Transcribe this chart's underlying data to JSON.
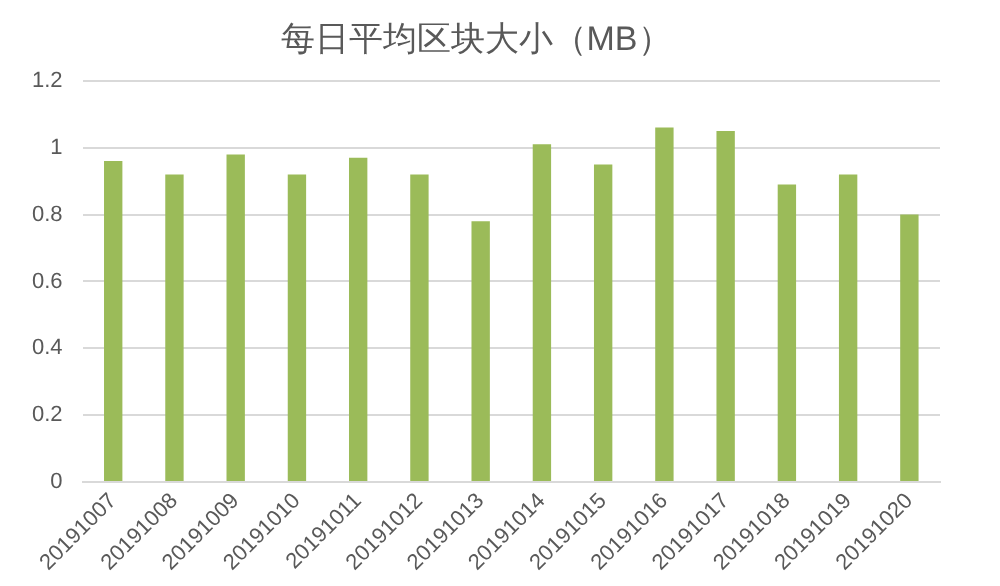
{
  "chart_data": {
    "type": "bar",
    "title": "每日平均区块大小（MB）",
    "categories": [
      "20191007",
      "20191008",
      "20191009",
      "20191010",
      "20191011",
      "20191012",
      "20191013",
      "20191014",
      "20191015",
      "20191016",
      "20191017",
      "20191018",
      "20191019",
      "20191020"
    ],
    "values": [
      0.96,
      0.92,
      0.98,
      0.92,
      0.97,
      0.92,
      0.78,
      1.01,
      0.95,
      1.06,
      1.05,
      0.89,
      0.92,
      0.8
    ],
    "color": "#9bbb59",
    "ylim": [
      0,
      1.2
    ],
    "yticks": [
      0,
      0.2,
      0.4,
      0.6,
      0.8,
      1,
      1.2
    ],
    "grid": "y"
  }
}
